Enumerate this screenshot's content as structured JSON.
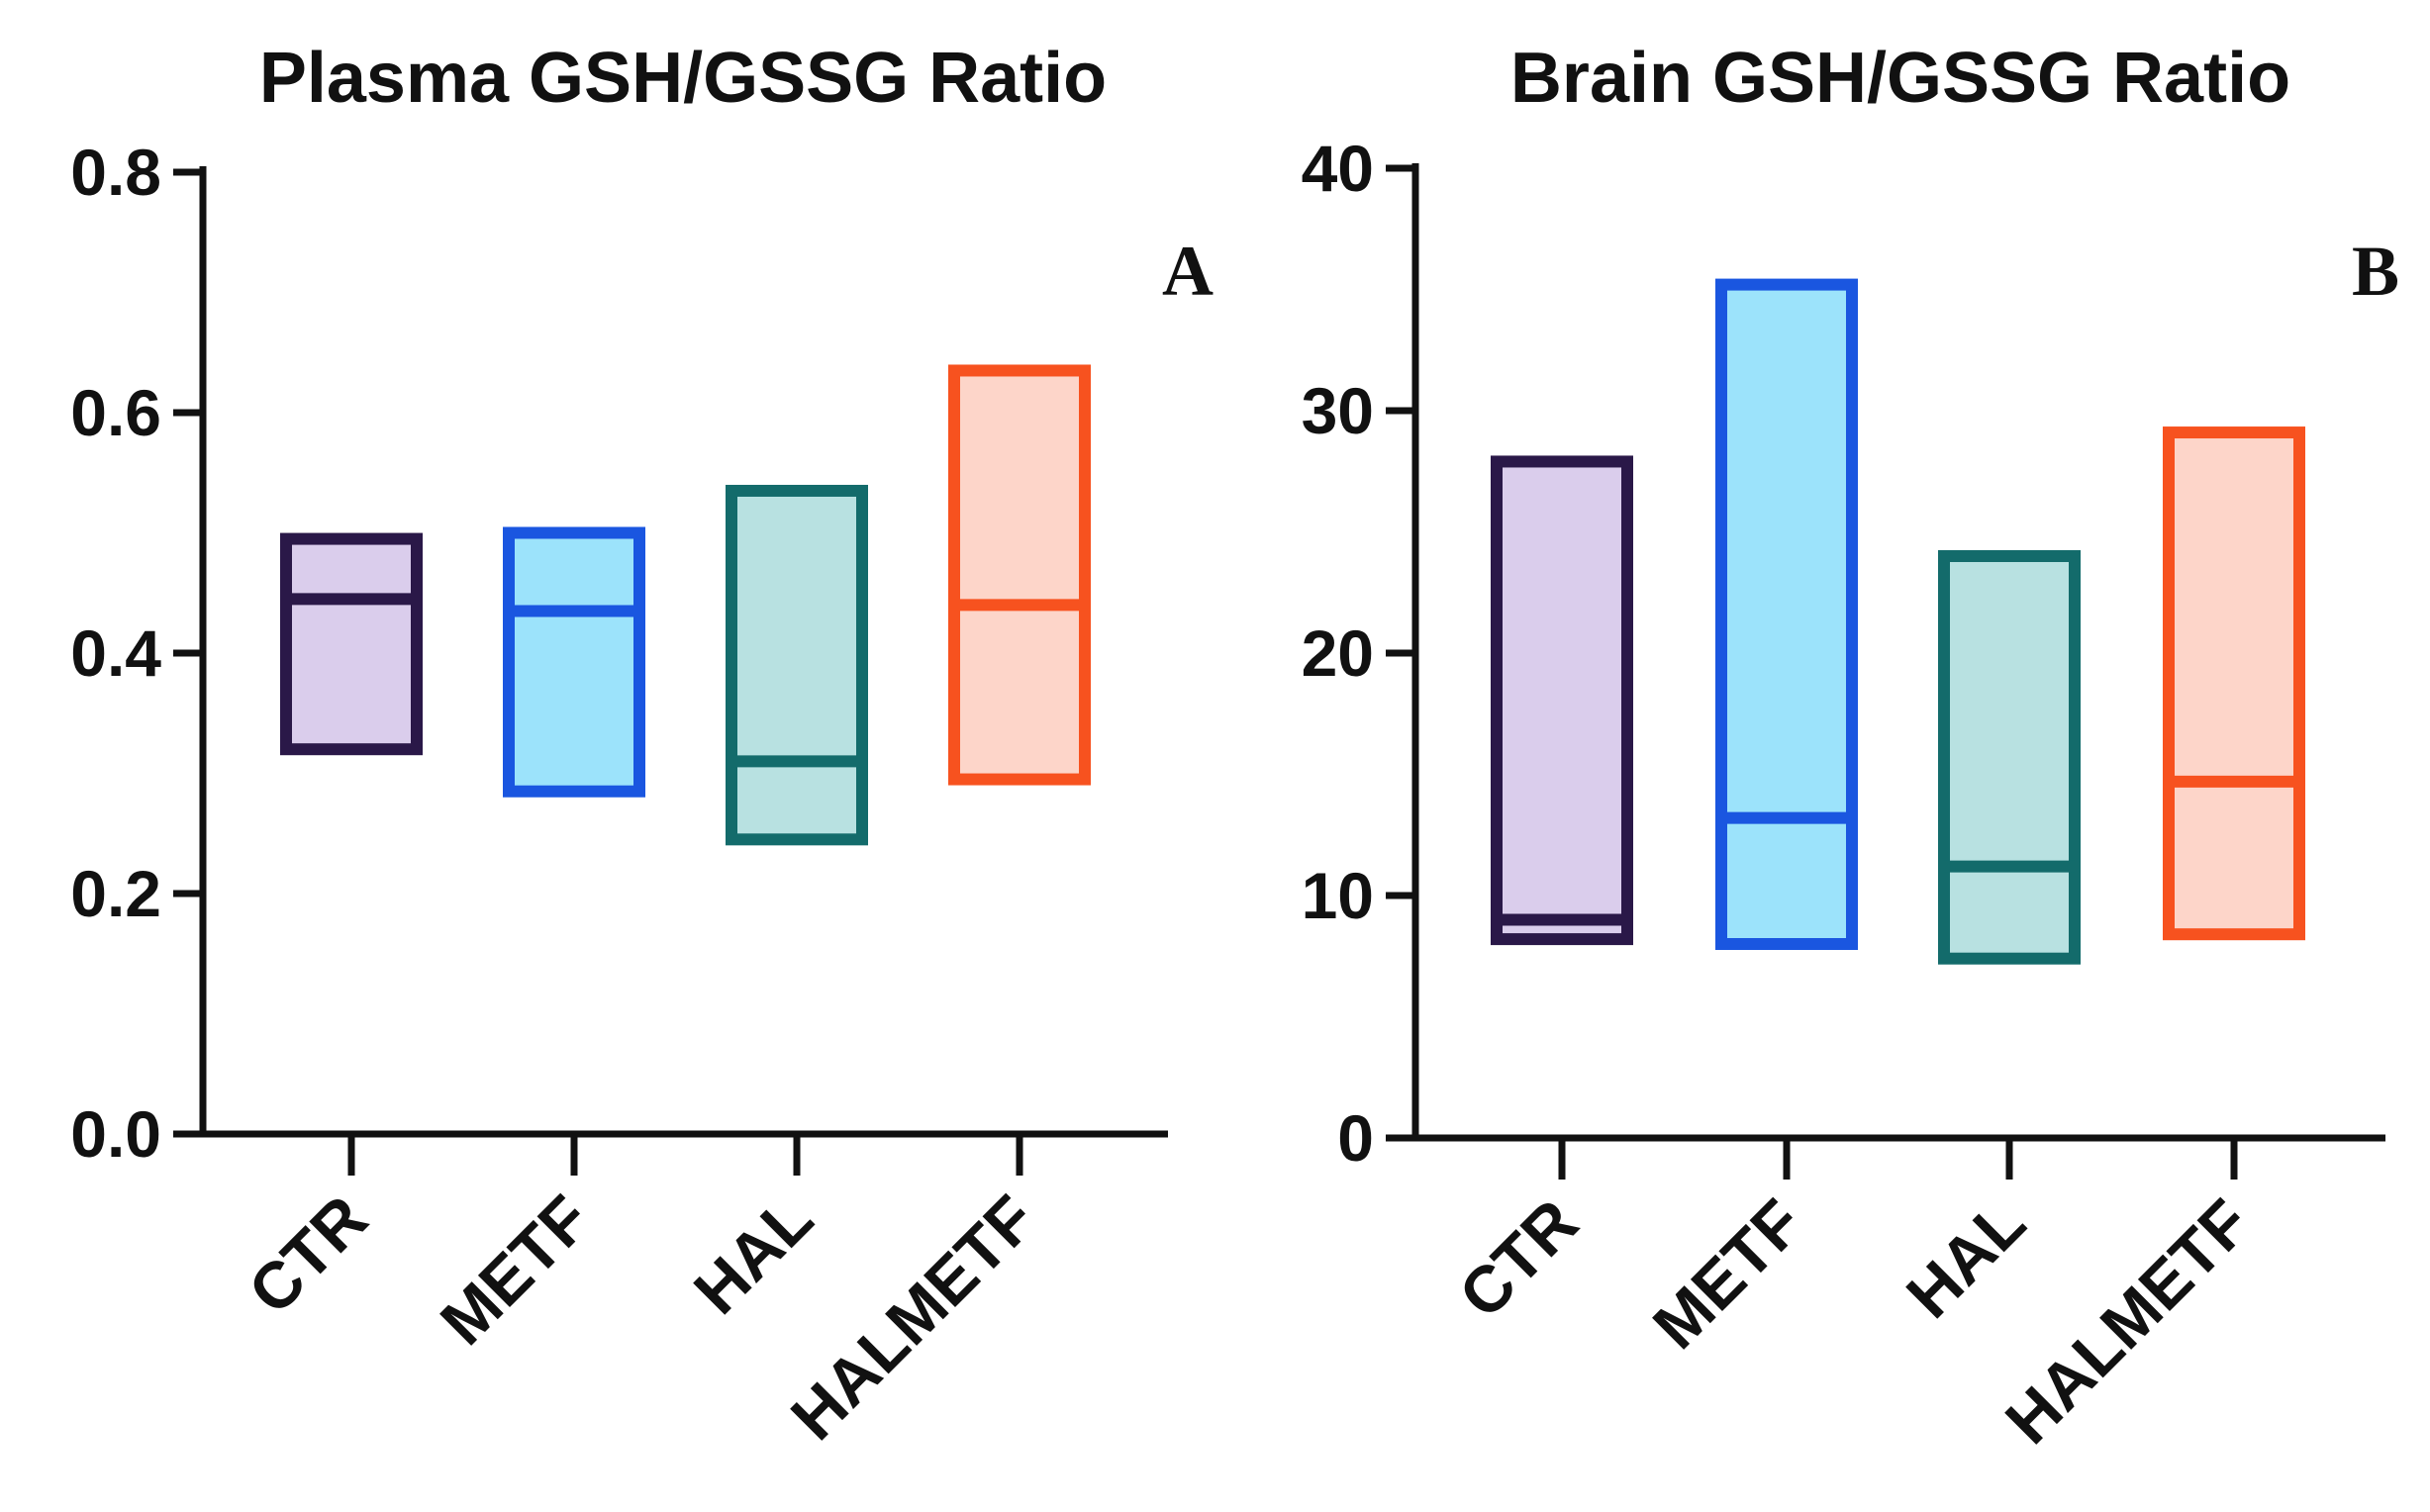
{
  "chart_data": [
    {
      "type": "floating-bar",
      "title": "Plasma GSH/GSSG Ratio",
      "panel_label": "A",
      "xlabel": "",
      "ylabel": "",
      "ylim": [
        0,
        0.8
      ],
      "y_ticks": [
        "0.0",
        "0.2",
        "0.4",
        "0.6",
        "0.8"
      ],
      "y_tick_values": [
        0,
        0.2,
        0.4,
        0.6,
        0.8
      ],
      "categories": [
        "CTR",
        "METF",
        "HAL",
        "HALMETF"
      ],
      "min": [
        0.32,
        0.285,
        0.245,
        0.295
      ],
      "max": [
        0.495,
        0.5,
        0.535,
        0.635
      ],
      "median": [
        0.445,
        0.435,
        0.31,
        0.44
      ],
      "edge_colors": [
        "#2a1848",
        "#1a56e0",
        "#136b6b",
        "#f7521f"
      ],
      "fill_colors": [
        "#dacdec",
        "#9ce3fb",
        "#b8e1e1",
        "#fdd5c9"
      ]
    },
    {
      "type": "floating-bar",
      "title": "Brain GSH/GSSG Ratio",
      "panel_label": "B",
      "xlabel": "",
      "ylabel": "",
      "ylim": [
        0,
        40
      ],
      "y_ticks": [
        "0",
        "10",
        "20",
        "30",
        "40"
      ],
      "y_tick_values": [
        0,
        10,
        20,
        30,
        40
      ],
      "categories": [
        "CTR",
        "METF",
        "HAL",
        "HALMETF"
      ],
      "min": [
        8.2,
        8.0,
        7.4,
        8.4
      ],
      "max": [
        27.9,
        35.2,
        24.0,
        29.1
      ],
      "median": [
        9.0,
        13.2,
        11.2,
        14.7
      ],
      "edge_colors": [
        "#2a1848",
        "#1a56e0",
        "#136b6b",
        "#f7521f"
      ],
      "fill_colors": [
        "#dacdec",
        "#9ce3fb",
        "#b8e1e1",
        "#fdd5c9"
      ]
    }
  ]
}
